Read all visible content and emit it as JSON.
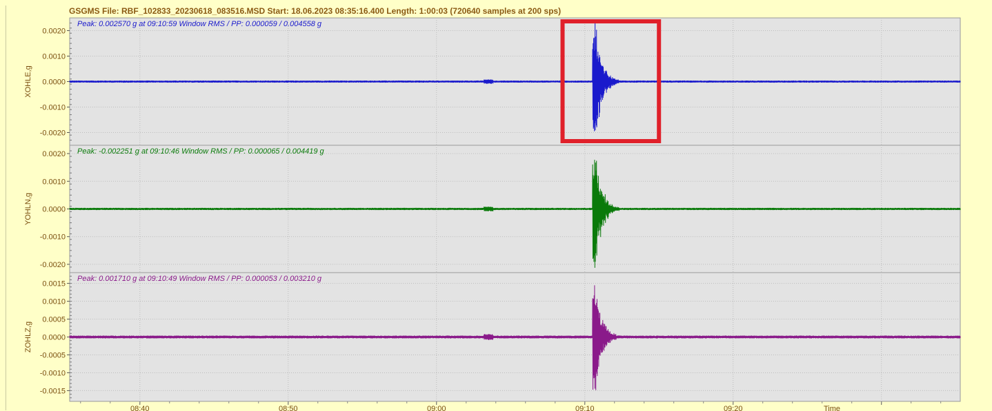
{
  "header": {
    "title": "GSGMS  File: RBF_102833_20230618_083516.MSD  Start: 18.06.2023 08:35:16.400  Length: 1:00:03 (720640 samples at 200 sps)"
  },
  "colors": {
    "background": "#ffffc8",
    "plot_bg": "#e3e3e3",
    "axis_text": "#7a4e10",
    "highlight": "#e0202a"
  },
  "chart_data": [
    {
      "type": "line",
      "channel": "XOHLE,g",
      "ylabel": "XOHLE,g",
      "color": "#1a1acc",
      "annotation": "Peak: 0.002570 g at 09:10:59   Window RMS / PP: 0.000059 / 0.004558 g",
      "ylim": [
        -0.0025,
        0.0025
      ],
      "yticks": [
        "0.0020",
        "0.0010",
        "0.0000",
        "-0.0010",
        "-0.0020"
      ],
      "ytick_values": [
        0.002,
        0.001,
        0.0,
        -0.001,
        -0.002
      ],
      "event": {
        "peak_pos": 0.00245,
        "peak_neg": -0.00195,
        "noise": 4e-05
      }
    },
    {
      "type": "line",
      "channel": "YOHLN,g",
      "ylabel": "YOHLN,g",
      "color": "#0a7a0a",
      "annotation": "Peak: -0.002251 g at 09:10:46   Window RMS / PP: 0.000065 / 0.004419 g",
      "ylim": [
        -0.0023,
        0.0023
      ],
      "yticks": [
        "0.0020",
        "0.0010",
        "0.0000",
        "-0.0010",
        "-0.0020"
      ],
      "ytick_values": [
        0.002,
        0.001,
        0.0,
        -0.001,
        -0.002
      ],
      "event": {
        "peak_pos": 0.00218,
        "peak_neg": -0.00225,
        "noise": 4e-05
      }
    },
    {
      "type": "line",
      "channel": "ZOHLZ,g",
      "ylabel": "ZOHLZ,g",
      "color": "#8a1a8a",
      "annotation": "Peak: 0.001710 g at 09:10:49   Window RMS / PP: 0.000053 / 0.003210 g",
      "ylim": [
        -0.0018,
        0.0018
      ],
      "yticks": [
        "0.0015",
        "0.0010",
        "0.0005",
        "0.0000",
        "-0.0005",
        "-0.0010",
        "-0.0015"
      ],
      "ytick_values": [
        0.0015,
        0.001,
        0.0005,
        0.0,
        -0.0005,
        -0.001,
        -0.0015
      ],
      "event": {
        "peak_pos": 0.00165,
        "peak_neg": -0.0015,
        "noise": 4e-05
      }
    }
  ],
  "x_axis": {
    "start": "08:35:16",
    "end": "09:35:19",
    "ticks": [
      "08:40",
      "08:50",
      "09:00",
      "09:10",
      "09:20"
    ],
    "tick_minutes": [
      40,
      50,
      60,
      70,
      80
    ],
    "label": "Time",
    "event_start": "09:10:30",
    "event_end": "09:12:30"
  },
  "highlight_box": {
    "panel": 0,
    "from": "09:08:30",
    "to": "09:15:00"
  }
}
